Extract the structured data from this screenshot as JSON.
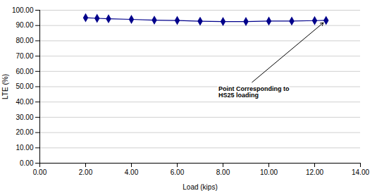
{
  "chart_data": {
    "type": "line",
    "x": [
      2.0,
      2.5,
      3.0,
      4.0,
      5.0,
      6.0,
      7.0,
      8.0,
      9.0,
      10.0,
      11.0,
      12.0,
      12.5
    ],
    "values": [
      95.1,
      94.7,
      94.4,
      94.0,
      93.5,
      93.3,
      92.8,
      92.6,
      92.6,
      92.9,
      92.9,
      93.2,
      93.33
    ],
    "color": "#00008B",
    "marker": "diamond",
    "line_style": "solid",
    "xlabel": "Load (kips)",
    "ylabel": "LTE (%)",
    "xlim": [
      0.0,
      14.0
    ],
    "ylim": [
      0.0,
      100.0
    ],
    "xticks": [
      {
        "value": 0,
        "label": "0.00"
      },
      {
        "value": 2,
        "label": "2.00"
      },
      {
        "value": 4,
        "label": "4.00"
      },
      {
        "value": 6,
        "label": "6.00"
      },
      {
        "value": 8,
        "label": "8.00"
      },
      {
        "value": 10,
        "label": "10.00"
      },
      {
        "value": 12,
        "label": "12.00"
      },
      {
        "value": 14,
        "label": "14.00"
      }
    ],
    "yticks": [
      {
        "value": 0,
        "label": "0.00"
      },
      {
        "value": 10,
        "label": "10.00"
      },
      {
        "value": 20,
        "label": "20.00"
      },
      {
        "value": 30,
        "label": "30.00"
      },
      {
        "value": 40,
        "label": "40.00"
      },
      {
        "value": 50,
        "label": "50.00"
      },
      {
        "value": 60,
        "label": "60.00"
      },
      {
        "value": 70,
        "label": "70.00"
      },
      {
        "value": 80,
        "label": "80.00"
      },
      {
        "value": 90,
        "label": "90.00"
      },
      {
        "value": 100,
        "label": "100.00"
      }
    ],
    "grid": true,
    "annotations": [
      {
        "text": "Point Corresponding to\nHS25 loading",
        "x": 12.5,
        "y": 93.33
      }
    ]
  }
}
